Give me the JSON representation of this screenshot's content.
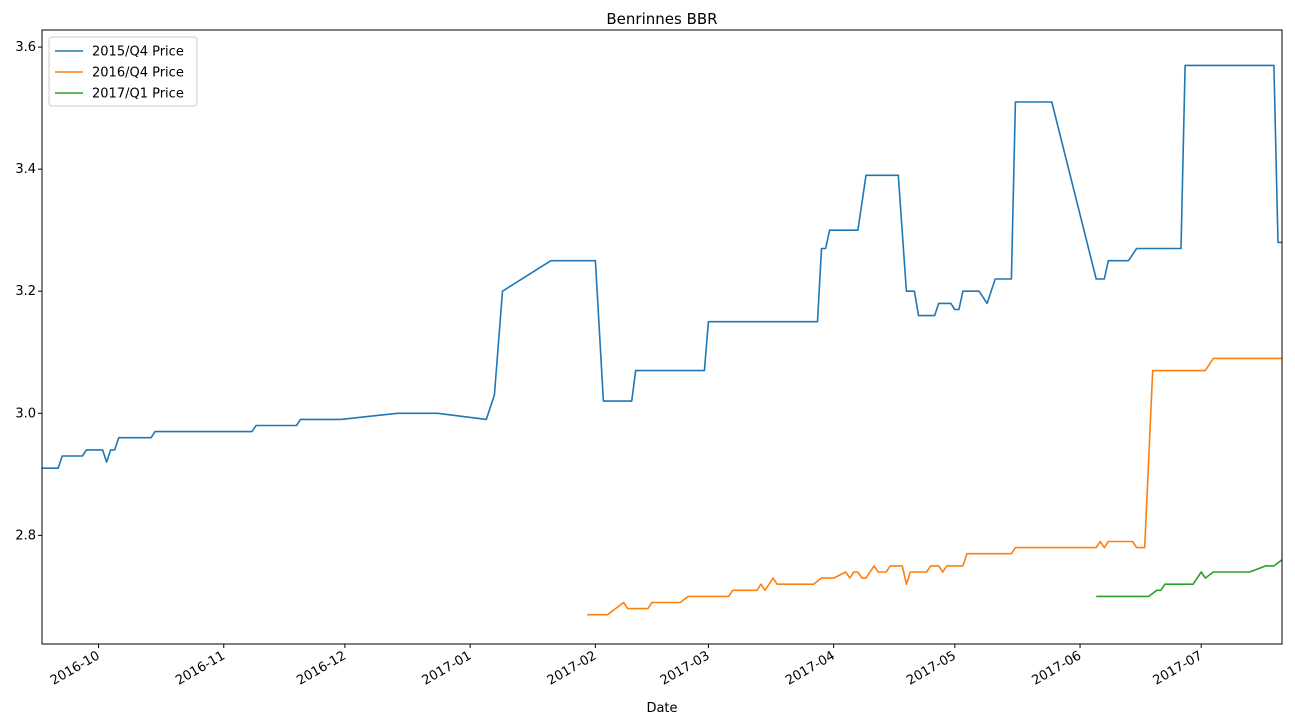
{
  "chart_data": {
    "type": "line",
    "title": "Benrinnes BBR",
    "xlabel": "Date",
    "ylabel": "",
    "xlim": [
      "2016-09-17",
      "2017-07-21"
    ],
    "ylim": [
      2.622,
      3.628
    ],
    "grid": false,
    "legend_position": "top-left",
    "x_ticks": [
      {
        "date": "2016-10-01",
        "label": "2016-10"
      },
      {
        "date": "2016-11-01",
        "label": "2016-11"
      },
      {
        "date": "2016-12-01",
        "label": "2016-12"
      },
      {
        "date": "2017-01-01",
        "label": "2017-01"
      },
      {
        "date": "2017-02-01",
        "label": "2017-02"
      },
      {
        "date": "2017-03-01",
        "label": "2017-03"
      },
      {
        "date": "2017-04-01",
        "label": "2017-04"
      },
      {
        "date": "2017-05-01",
        "label": "2017-05"
      },
      {
        "date": "2017-06-01",
        "label": "2017-06"
      },
      {
        "date": "2017-07-01",
        "label": "2017-07"
      }
    ],
    "y_ticks": [
      {
        "value": 2.8,
        "label": "2.8"
      },
      {
        "value": 3.0,
        "label": "3.0"
      },
      {
        "value": 3.2,
        "label": "3.2"
      },
      {
        "value": 3.4,
        "label": "3.4"
      },
      {
        "value": 3.6,
        "label": "3.6"
      }
    ],
    "series": [
      {
        "name": "2015/Q4 Price",
        "color": "#1f77b4",
        "points": [
          [
            "2016-09-17",
            2.91
          ],
          [
            "2016-09-21",
            2.91
          ],
          [
            "2016-09-22",
            2.93
          ],
          [
            "2016-09-27",
            2.93
          ],
          [
            "2016-09-28",
            2.94
          ],
          [
            "2016-10-02",
            2.94
          ],
          [
            "2016-10-03",
            2.92
          ],
          [
            "2016-10-04",
            2.94
          ],
          [
            "2016-10-05",
            2.94
          ],
          [
            "2016-10-06",
            2.96
          ],
          [
            "2016-10-14",
            2.96
          ],
          [
            "2016-10-15",
            2.97
          ],
          [
            "2016-11-08",
            2.97
          ],
          [
            "2016-11-09",
            2.98
          ],
          [
            "2016-11-19",
            2.98
          ],
          [
            "2016-11-20",
            2.99
          ],
          [
            "2016-11-30",
            2.99
          ],
          [
            "2016-12-14",
            3.0
          ],
          [
            "2016-12-24",
            3.0
          ],
          [
            "2017-01-05",
            2.99
          ],
          [
            "2017-01-07",
            3.03
          ],
          [
            "2017-01-09",
            3.2
          ],
          [
            "2017-01-21",
            3.25
          ],
          [
            "2017-02-01",
            3.25
          ],
          [
            "2017-02-03",
            3.02
          ],
          [
            "2017-02-10",
            3.02
          ],
          [
            "2017-02-11",
            3.07
          ],
          [
            "2017-02-28",
            3.07
          ],
          [
            "2017-03-01",
            3.15
          ],
          [
            "2017-03-28",
            3.15
          ],
          [
            "2017-03-29",
            3.27
          ],
          [
            "2017-03-30",
            3.27
          ],
          [
            "2017-03-31",
            3.3
          ],
          [
            "2017-04-07",
            3.3
          ],
          [
            "2017-04-09",
            3.39
          ],
          [
            "2017-04-17",
            3.39
          ],
          [
            "2017-04-19",
            3.2
          ],
          [
            "2017-04-21",
            3.2
          ],
          [
            "2017-04-22",
            3.16
          ],
          [
            "2017-04-26",
            3.16
          ],
          [
            "2017-04-27",
            3.18
          ],
          [
            "2017-04-30",
            3.18
          ],
          [
            "2017-05-01",
            3.17
          ],
          [
            "2017-05-02",
            3.17
          ],
          [
            "2017-05-03",
            3.2
          ],
          [
            "2017-05-07",
            3.2
          ],
          [
            "2017-05-09",
            3.18
          ],
          [
            "2017-05-11",
            3.22
          ],
          [
            "2017-05-15",
            3.22
          ],
          [
            "2017-05-16",
            3.51
          ],
          [
            "2017-05-25",
            3.51
          ],
          [
            "2017-06-05",
            3.22
          ],
          [
            "2017-06-07",
            3.22
          ],
          [
            "2017-06-08",
            3.25
          ],
          [
            "2017-06-13",
            3.25
          ],
          [
            "2017-06-15",
            3.27
          ],
          [
            "2017-06-26",
            3.27
          ],
          [
            "2017-06-27",
            3.57
          ],
          [
            "2017-07-19",
            3.57
          ],
          [
            "2017-07-20",
            3.28
          ],
          [
            "2017-07-21",
            3.28
          ]
        ]
      },
      {
        "name": "2016/Q4 Price",
        "color": "#ff7f0e",
        "points": [
          [
            "2017-01-30",
            2.67
          ],
          [
            "2017-02-04",
            2.67
          ],
          [
            "2017-02-06",
            2.68
          ],
          [
            "2017-02-08",
            2.69
          ],
          [
            "2017-02-09",
            2.68
          ],
          [
            "2017-02-14",
            2.68
          ],
          [
            "2017-02-15",
            2.69
          ],
          [
            "2017-02-22",
            2.69
          ],
          [
            "2017-02-24",
            2.7
          ],
          [
            "2017-03-06",
            2.7
          ],
          [
            "2017-03-07",
            2.71
          ],
          [
            "2017-03-13",
            2.71
          ],
          [
            "2017-03-14",
            2.72
          ],
          [
            "2017-03-15",
            2.71
          ],
          [
            "2017-03-17",
            2.73
          ],
          [
            "2017-03-18",
            2.72
          ],
          [
            "2017-03-27",
            2.72
          ],
          [
            "2017-03-29",
            2.73
          ],
          [
            "2017-04-01",
            2.73
          ],
          [
            "2017-04-04",
            2.74
          ],
          [
            "2017-04-05",
            2.73
          ],
          [
            "2017-04-06",
            2.74
          ],
          [
            "2017-04-07",
            2.74
          ],
          [
            "2017-04-08",
            2.73
          ],
          [
            "2017-04-09",
            2.73
          ],
          [
            "2017-04-11",
            2.75
          ],
          [
            "2017-04-12",
            2.74
          ],
          [
            "2017-04-14",
            2.74
          ],
          [
            "2017-04-15",
            2.75
          ],
          [
            "2017-04-18",
            2.75
          ],
          [
            "2017-04-19",
            2.72
          ],
          [
            "2017-04-20",
            2.74
          ],
          [
            "2017-04-24",
            2.74
          ],
          [
            "2017-04-25",
            2.75
          ],
          [
            "2017-04-27",
            2.75
          ],
          [
            "2017-04-28",
            2.74
          ],
          [
            "2017-04-29",
            2.75
          ],
          [
            "2017-05-03",
            2.75
          ],
          [
            "2017-05-04",
            2.77
          ],
          [
            "2017-05-15",
            2.77
          ],
          [
            "2017-05-16",
            2.78
          ],
          [
            "2017-06-05",
            2.78
          ],
          [
            "2017-06-06",
            2.79
          ],
          [
            "2017-06-07",
            2.78
          ],
          [
            "2017-06-08",
            2.79
          ],
          [
            "2017-06-14",
            2.79
          ],
          [
            "2017-06-15",
            2.78
          ],
          [
            "2017-06-17",
            2.78
          ],
          [
            "2017-06-19",
            3.07
          ],
          [
            "2017-07-02",
            3.07
          ],
          [
            "2017-07-04",
            3.09
          ],
          [
            "2017-07-21",
            3.09
          ]
        ]
      },
      {
        "name": "2017/Q1 Price",
        "color": "#2ca02c",
        "points": [
          [
            "2017-06-05",
            2.7
          ],
          [
            "2017-06-18",
            2.7
          ],
          [
            "2017-06-20",
            2.71
          ],
          [
            "2017-06-21",
            2.71
          ],
          [
            "2017-06-22",
            2.72
          ],
          [
            "2017-06-29",
            2.72
          ],
          [
            "2017-07-01",
            2.74
          ],
          [
            "2017-07-02",
            2.73
          ],
          [
            "2017-07-04",
            2.74
          ],
          [
            "2017-07-13",
            2.74
          ],
          [
            "2017-07-17",
            2.75
          ],
          [
            "2017-07-19",
            2.75
          ],
          [
            "2017-07-21",
            2.76
          ]
        ]
      }
    ]
  }
}
